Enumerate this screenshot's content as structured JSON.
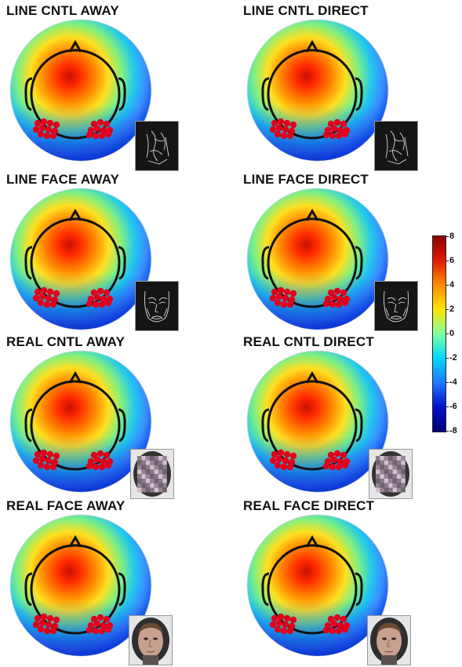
{
  "panels": [
    {
      "title": "LINE CNTL AWAY",
      "stimulus": "line-control"
    },
    {
      "title": "LINE CNTL DIRECT",
      "stimulus": "line-control"
    },
    {
      "title": "LINE FACE AWAY",
      "stimulus": "line-face"
    },
    {
      "title": "LINE FACE DIRECT",
      "stimulus": "line-face"
    },
    {
      "title": "REAL CNTL AWAY",
      "stimulus": "scrambled-real"
    },
    {
      "title": "REAL CNTL DIRECT",
      "stimulus": "scrambled-real"
    },
    {
      "title": "REAL FACE AWAY",
      "stimulus": "real-face-photo"
    },
    {
      "title": "REAL FACE DIRECT",
      "stimulus": "real-face-photo"
    }
  ],
  "colorbar": {
    "max": 8,
    "min": -8,
    "ticks": [
      "8",
      "6",
      "4",
      "2",
      "0",
      "-2",
      "-4",
      "-6",
      "-8"
    ],
    "colors": [
      "#8b0000",
      "#e21a00",
      "#ff8c00",
      "#ffe600",
      "#7fffa0",
      "#00d8ff",
      "#1e78ff",
      "#0010c8",
      "#00007a"
    ]
  },
  "colors": {
    "electrode": "#e0001c",
    "head_outline": "#111111"
  }
}
